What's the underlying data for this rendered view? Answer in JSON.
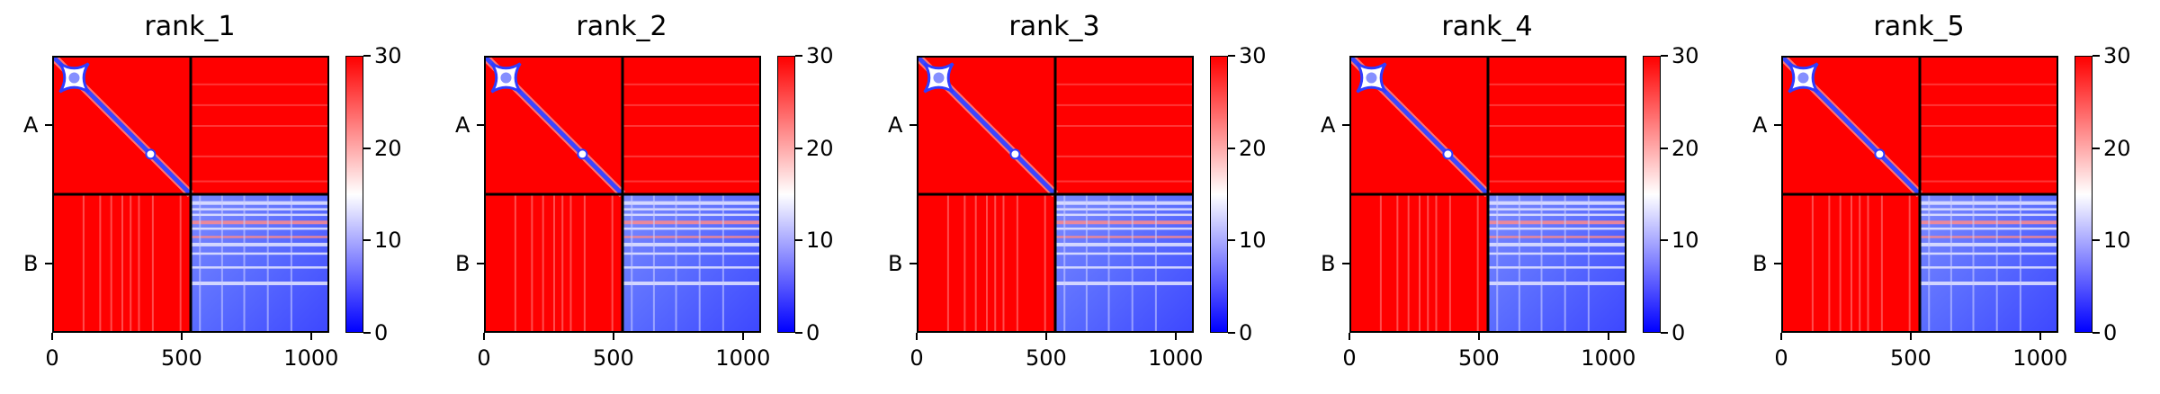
{
  "chart_data": [
    {
      "type": "heatmap",
      "title": "rank_1",
      "chains": [
        "A",
        "B"
      ],
      "chain_boundary": 535,
      "total_length": 1070,
      "x_ticks": [
        0,
        500,
        1000
      ],
      "y_tick_labels": [
        "A",
        "B"
      ],
      "colorbar": {
        "min": 0,
        "max": 30,
        "ticks": [
          0,
          10,
          20,
          30
        ],
        "colormap": "bwr"
      }
    },
    {
      "type": "heatmap",
      "title": "rank_2",
      "chains": [
        "A",
        "B"
      ],
      "chain_boundary": 535,
      "total_length": 1070,
      "x_ticks": [
        0,
        500,
        1000
      ],
      "y_tick_labels": [
        "A",
        "B"
      ],
      "colorbar": {
        "min": 0,
        "max": 30,
        "ticks": [
          0,
          10,
          20,
          30
        ],
        "colormap": "bwr"
      }
    },
    {
      "type": "heatmap",
      "title": "rank_3",
      "chains": [
        "A",
        "B"
      ],
      "chain_boundary": 535,
      "total_length": 1070,
      "x_ticks": [
        0,
        500,
        1000
      ],
      "y_tick_labels": [
        "A",
        "B"
      ],
      "colorbar": {
        "min": 0,
        "max": 30,
        "ticks": [
          0,
          10,
          20,
          30
        ],
        "colormap": "bwr"
      }
    },
    {
      "type": "heatmap",
      "title": "rank_4",
      "chains": [
        "A",
        "B"
      ],
      "chain_boundary": 535,
      "total_length": 1070,
      "x_ticks": [
        0,
        500,
        1000
      ],
      "y_tick_labels": [
        "A",
        "B"
      ],
      "colorbar": {
        "min": 0,
        "max": 30,
        "ticks": [
          0,
          10,
          20,
          30
        ],
        "colormap": "bwr"
      }
    },
    {
      "type": "heatmap",
      "title": "rank_5",
      "chains": [
        "A",
        "B"
      ],
      "chain_boundary": 535,
      "total_length": 1070,
      "x_ticks": [
        0,
        500,
        1000
      ],
      "y_tick_labels": [
        "A",
        "B"
      ],
      "colorbar": {
        "min": 0,
        "max": 30,
        "ticks": [
          0,
          10,
          20,
          30
        ],
        "colormap": "bwr"
      }
    }
  ],
  "colors": {
    "high": "#ff0000",
    "mid": "#ffffff",
    "low": "#0000ff"
  }
}
